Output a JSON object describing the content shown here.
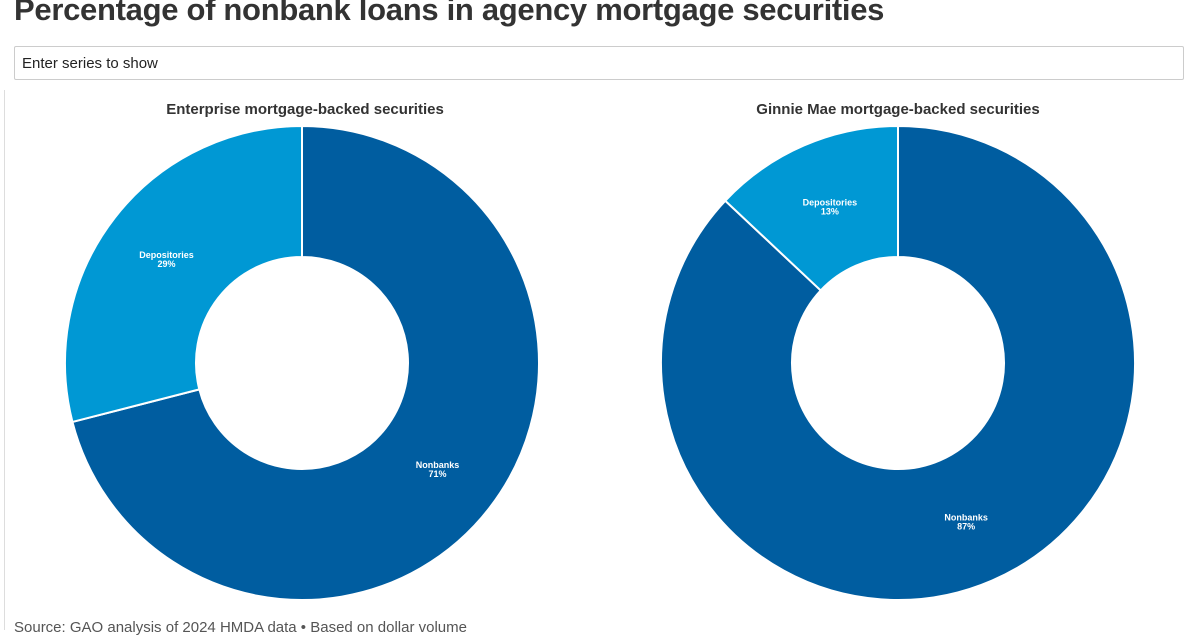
{
  "title": "Percentage of nonbank loans in agency mortgage securities",
  "search": {
    "placeholder": "Enter series to show"
  },
  "source": "Source: GAO analysis of 2024 HMDA data • Based on dollar volume",
  "colors": {
    "Nonbanks": "#005da0",
    "Depositories": "#0098d4"
  },
  "chart_data": [
    {
      "type": "pie",
      "title": "Enterprise mortgage-backed securities",
      "slices": [
        {
          "label": "Nonbanks",
          "value": 71,
          "display": "71%"
        },
        {
          "label": "Depositories",
          "value": 29,
          "display": "29%"
        }
      ]
    },
    {
      "type": "pie",
      "title": "Ginnie Mae mortgage-backed securities",
      "slices": [
        {
          "label": "Nonbanks",
          "value": 87,
          "display": "87%"
        },
        {
          "label": "Depositories",
          "value": 13,
          "display": "13%"
        }
      ]
    }
  ]
}
